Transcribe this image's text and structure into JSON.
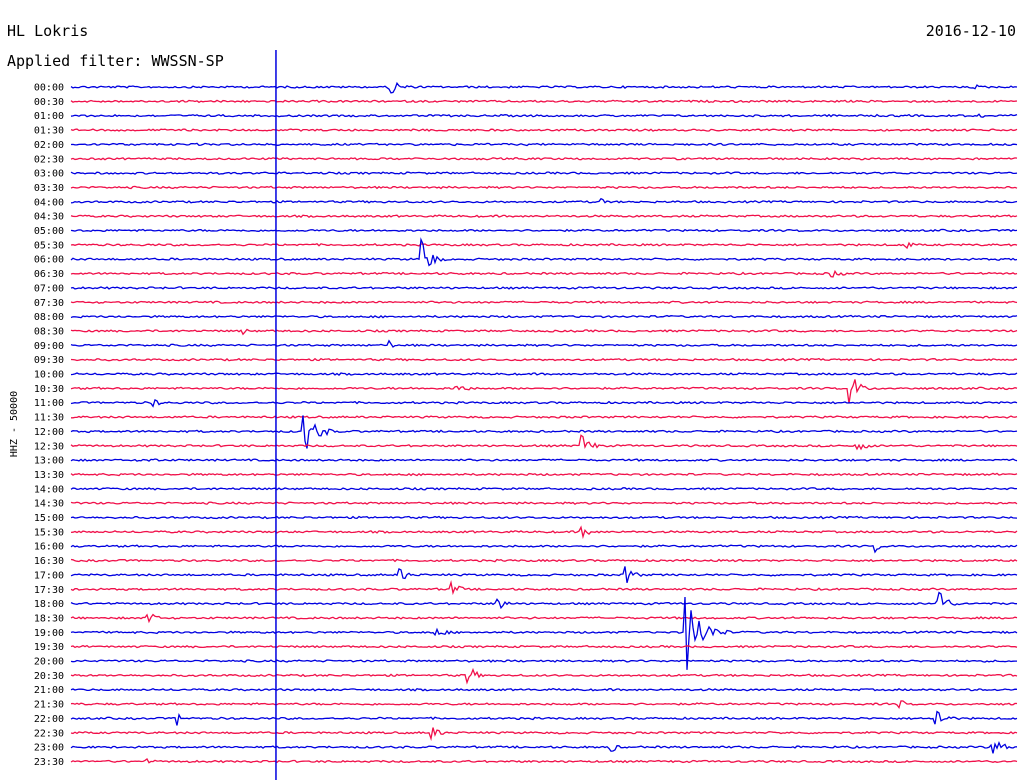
{
  "header": {
    "station": "HL Lokris",
    "date": "2016-12-10",
    "filter": "Applied filter: WWSSN-SP"
  },
  "y_axis_label": "HHZ - 50000",
  "colors": {
    "even_trace": "#0000e0",
    "odd_trace": "#f0104a",
    "marker": "#0000e0",
    "background": "#ffffff"
  },
  "chart_data": {
    "type": "line",
    "title": "",
    "xlabel": "",
    "ylabel": "HHZ - 50000",
    "grid": false,
    "legend": "none",
    "x_range_minutes": [
      0,
      30
    ],
    "marker_minute": 6.5,
    "rows": [
      "00:00",
      "00:30",
      "01:00",
      "01:30",
      "02:00",
      "02:30",
      "03:00",
      "03:30",
      "04:00",
      "04:30",
      "05:00",
      "05:30",
      "06:00",
      "06:30",
      "07:00",
      "07:30",
      "08:00",
      "08:30",
      "09:00",
      "09:30",
      "10:00",
      "10:30",
      "11:00",
      "11:30",
      "12:00",
      "12:30",
      "13:00",
      "13:30",
      "14:00",
      "14:30",
      "15:00",
      "15:30",
      "16:00",
      "16:30",
      "17:00",
      "17:30",
      "18:00",
      "18:30",
      "19:00",
      "19:30",
      "20:00",
      "20:30",
      "21:00",
      "21:30",
      "22:00",
      "22:30",
      "23:00",
      "23:30"
    ],
    "events": [
      {
        "row": "00:00",
        "minute": 10.1,
        "amplitude": 12,
        "duration": 0.9
      },
      {
        "row": "00:00",
        "minute": 28.7,
        "amplitude": 3,
        "duration": 0.3
      },
      {
        "row": "01:00",
        "minute": 28.8,
        "amplitude": 3,
        "duration": 0.8
      },
      {
        "row": "04:00",
        "minute": 16.8,
        "amplitude": 5,
        "duration": 0.4
      },
      {
        "row": "05:30",
        "minute": 26.4,
        "amplitude": 8,
        "duration": 0.6
      },
      {
        "row": "06:00",
        "minute": 11.1,
        "amplitude": 28,
        "duration": 0.8
      },
      {
        "row": "06:30",
        "minute": 24.1,
        "amplitude": 5,
        "duration": 1.0
      },
      {
        "row": "08:30",
        "minute": 5.5,
        "amplitude": 4,
        "duration": 0.3
      },
      {
        "row": "09:00",
        "minute": 10.1,
        "amplitude": 6,
        "duration": 0.3
      },
      {
        "row": "10:30",
        "minute": 12.2,
        "amplitude": 6,
        "duration": 1.0
      },
      {
        "row": "10:30",
        "minute": 24.7,
        "amplitude": 18,
        "duration": 0.8
      },
      {
        "row": "11:00",
        "minute": 2.6,
        "amplitude": 9,
        "duration": 0.4
      },
      {
        "row": "12:00",
        "minute": 7.4,
        "amplitude": 22,
        "duration": 1.2
      },
      {
        "row": "12:30",
        "minute": 16.1,
        "amplitude": 16,
        "duration": 0.9
      },
      {
        "row": "12:30",
        "minute": 24.9,
        "amplitude": 5,
        "duration": 1.3
      },
      {
        "row": "13:00",
        "minute": 2.5,
        "amplitude": 4,
        "duration": 0.6
      },
      {
        "row": "15:30",
        "minute": 16.2,
        "amplitude": 6,
        "duration": 1.0
      },
      {
        "row": "16:00",
        "minute": 25.5,
        "amplitude": 7,
        "duration": 0.5
      },
      {
        "row": "17:00",
        "minute": 17.6,
        "amplitude": 12,
        "duration": 0.7
      },
      {
        "row": "17:00",
        "minute": 10.4,
        "amplitude": 8,
        "duration": 0.9
      },
      {
        "row": "17:30",
        "minute": 12.0,
        "amplitude": 9,
        "duration": 0.9
      },
      {
        "row": "18:00",
        "minute": 27.5,
        "amplitude": 22,
        "duration": 0.7
      },
      {
        "row": "18:00",
        "minute": 13.5,
        "amplitude": 9,
        "duration": 0.8
      },
      {
        "row": "18:30",
        "minute": 2.4,
        "amplitude": 12,
        "duration": 0.6
      },
      {
        "row": "19:00",
        "minute": 19.5,
        "amplitude": 42,
        "duration": 1.4
      },
      {
        "row": "19:00",
        "minute": 11.5,
        "amplitude": 6,
        "duration": 1.2
      },
      {
        "row": "20:30",
        "minute": 12.6,
        "amplitude": 14,
        "duration": 0.6
      },
      {
        "row": "21:30",
        "minute": 26.3,
        "amplitude": 6,
        "duration": 0.4
      },
      {
        "row": "22:00",
        "minute": 3.4,
        "amplitude": 8,
        "duration": 0.2
      },
      {
        "row": "22:00",
        "minute": 27.4,
        "amplitude": 15,
        "duration": 0.8
      },
      {
        "row": "22:30",
        "minute": 11.4,
        "amplitude": 8,
        "duration": 0.8
      },
      {
        "row": "23:00",
        "minute": 17.1,
        "amplitude": 8,
        "duration": 0.5
      },
      {
        "row": "23:00",
        "minute": 29.2,
        "amplitude": 8,
        "duration": 1.6
      },
      {
        "row": "23:30",
        "minute": 2.3,
        "amplitude": 4,
        "duration": 1.0
      }
    ]
  }
}
